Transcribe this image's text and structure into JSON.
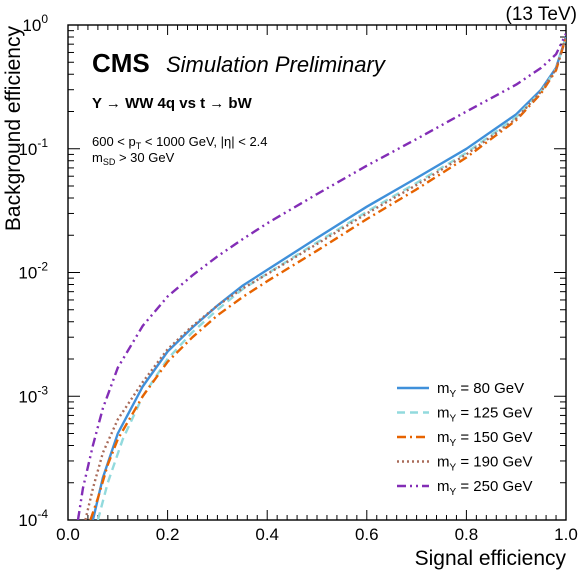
{
  "energy_label": "(13 TeV)",
  "cms_label": "CMS",
  "cms_sublabel": "Simulation Preliminary",
  "process_label": "Y → WW 4q vs t → bW",
  "cuts": {
    "line1_a": "600 < p",
    "line1_sub": "T",
    "line1_b": " < 1000 GeV, |η| < 2.4",
    "line2_a": "m",
    "line2_sub": "SD",
    "line2_b": " > 30 GeV"
  },
  "chart_data": {
    "type": "line",
    "xlabel": "Signal efficiency",
    "ylabel": "Background efficiency",
    "xlim": [
      0,
      1
    ],
    "ylim": [
      0.0001,
      1
    ],
    "yscale": "log",
    "x_ticks": [
      "0.0",
      "0.2",
      "0.4",
      "0.6",
      "0.8",
      "1.0"
    ],
    "y_ticks": [
      {
        "base": "10",
        "exp": "-4"
      },
      {
        "base": "10",
        "exp": "-3"
      },
      {
        "base": "10",
        "exp": "-2"
      },
      {
        "base": "10",
        "exp": "-1"
      },
      {
        "base": "10",
        "exp": "0"
      }
    ],
    "legend_position": "bottom-right",
    "series": [
      {
        "name_main": "m",
        "name_sub": "Y",
        "name_rest": " = 80 GeV",
        "color": "#3f90da",
        "dash": "solid",
        "x": [
          0.05,
          0.07,
          0.1,
          0.15,
          0.2,
          0.25,
          0.3,
          0.35,
          0.4,
          0.5,
          0.6,
          0.7,
          0.8,
          0.9,
          0.95,
          0.98,
          1.0
        ],
        "y": [
          0.0001,
          0.00022,
          0.0005,
          0.0012,
          0.0023,
          0.0036,
          0.0054,
          0.0078,
          0.0105,
          0.019,
          0.034,
          0.058,
          0.1,
          0.19,
          0.3,
          0.45,
          0.8
        ]
      },
      {
        "name_main": "m",
        "name_sub": "Y",
        "name_rest": " = 125 GeV",
        "color": "#92dadd",
        "dash": "dashed",
        "x": [
          0.06,
          0.08,
          0.11,
          0.15,
          0.2,
          0.25,
          0.3,
          0.35,
          0.4,
          0.5,
          0.6,
          0.7,
          0.8,
          0.9,
          0.95,
          0.98,
          1.0
        ],
        "y": [
          0.0001,
          0.0002,
          0.00045,
          0.001,
          0.002,
          0.0033,
          0.005,
          0.0073,
          0.0098,
          0.0175,
          0.031,
          0.053,
          0.093,
          0.18,
          0.29,
          0.44,
          0.8
        ]
      },
      {
        "name_main": "m",
        "name_sub": "Y",
        "name_rest": " = 150 GeV",
        "color": "#e76300",
        "dash": "dashdot",
        "x": [
          0.045,
          0.06,
          0.08,
          0.1,
          0.15,
          0.2,
          0.25,
          0.3,
          0.35,
          0.4,
          0.5,
          0.6,
          0.7,
          0.8,
          0.9,
          0.95,
          0.98,
          1.0
        ],
        "y": [
          0.0001,
          0.00015,
          0.00028,
          0.00045,
          0.001,
          0.0019,
          0.003,
          0.0045,
          0.0063,
          0.0085,
          0.015,
          0.027,
          0.047,
          0.085,
          0.17,
          0.28,
          0.43,
          0.8
        ]
      },
      {
        "name_main": "m",
        "name_sub": "Y",
        "name_rest": " = 190 GeV",
        "color": "#a96b59",
        "dash": "dotted",
        "x": [
          0.035,
          0.05,
          0.07,
          0.1,
          0.15,
          0.2,
          0.25,
          0.3,
          0.35,
          0.4,
          0.5,
          0.6,
          0.7,
          0.8,
          0.9,
          0.95,
          0.98,
          1.0
        ],
        "y": [
          0.0001,
          0.00018,
          0.00035,
          0.00065,
          0.0013,
          0.0024,
          0.0037,
          0.0054,
          0.0074,
          0.0097,
          0.017,
          0.03,
          0.051,
          0.09,
          0.175,
          0.29,
          0.44,
          0.8
        ]
      },
      {
        "name_main": "m",
        "name_sub": "Y",
        "name_rest": " = 250 GeV",
        "color": "#832db6",
        "dash": "dashdotdot",
        "x": [
          0.02,
          0.03,
          0.05,
          0.07,
          0.1,
          0.15,
          0.2,
          0.25,
          0.3,
          0.35,
          0.4,
          0.5,
          0.6,
          0.7,
          0.8,
          0.9,
          0.95,
          0.98,
          1.0
        ],
        "y": [
          0.0001,
          0.00018,
          0.0004,
          0.0008,
          0.0017,
          0.0037,
          0.0064,
          0.0095,
          0.0135,
          0.0185,
          0.025,
          0.043,
          0.073,
          0.12,
          0.2,
          0.33,
          0.45,
          0.58,
          0.85
        ]
      }
    ]
  }
}
